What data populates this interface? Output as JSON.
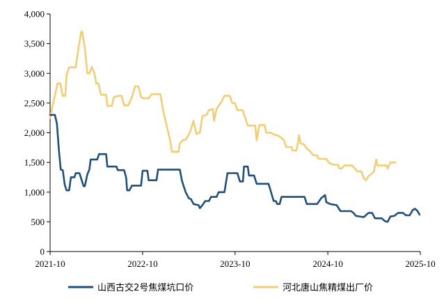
{
  "chart_data": {
    "type": "line",
    "title": "",
    "xlabel": "",
    "ylabel": "",
    "x_axis": {
      "type": "date",
      "range": [
        "2021-10",
        "2025-10"
      ],
      "tick_labels": [
        "2021-10",
        "2022-10",
        "2023-10",
        "2024-10",
        "2025-10"
      ]
    },
    "y_axis": {
      "range": [
        0,
        4000
      ],
      "tick_values": [
        0,
        500,
        1000,
        1500,
        2000,
        2500,
        3000,
        3500,
        4000
      ],
      "tick_labels": [
        "0",
        "500",
        "1,000",
        "1,500",
        "2,000",
        "2,500",
        "3,000",
        "3,500",
        "4,000"
      ]
    },
    "grid": false,
    "legend_position": "bottom",
    "series": [
      {
        "name": "山西古交2号焦煤坑口价",
        "color": "#1f4e79",
        "points": [
          [
            "2021-10-01",
            2300
          ],
          [
            "2021-10-20",
            2300
          ],
          [
            "2021-10-28",
            2150
          ],
          [
            "2021-11-05",
            1700
          ],
          [
            "2021-11-12",
            1380
          ],
          [
            "2021-11-20",
            1370
          ],
          [
            "2021-11-28",
            1120
          ],
          [
            "2021-12-05",
            1030
          ],
          [
            "2021-12-15",
            1030
          ],
          [
            "2021-12-22",
            1250
          ],
          [
            "2022-01-05",
            1250
          ],
          [
            "2022-01-10",
            1320
          ],
          [
            "2022-01-25",
            1320
          ],
          [
            "2022-02-10",
            1100
          ],
          [
            "2022-02-15",
            1100
          ],
          [
            "2022-02-25",
            1300
          ],
          [
            "2022-03-05",
            1380
          ],
          [
            "2022-03-10",
            1550
          ],
          [
            "2022-04-05",
            1550
          ],
          [
            "2022-04-12",
            1640
          ],
          [
            "2022-05-10",
            1640
          ],
          [
            "2022-05-15",
            1430
          ],
          [
            "2022-06-20",
            1430
          ],
          [
            "2022-06-25",
            1370
          ],
          [
            "2022-07-20",
            1370
          ],
          [
            "2022-07-28",
            1250
          ],
          [
            "2022-08-01",
            1030
          ],
          [
            "2022-08-10",
            1030
          ],
          [
            "2022-08-20",
            1110
          ],
          [
            "2022-09-25",
            1110
          ],
          [
            "2022-10-01",
            1360
          ],
          [
            "2022-10-20",
            1360
          ],
          [
            "2022-10-25",
            1200
          ],
          [
            "2022-11-25",
            1200
          ],
          [
            "2022-12-01",
            1380
          ],
          [
            "2023-02-25",
            1380
          ],
          [
            "2023-03-05",
            1200
          ],
          [
            "2023-03-12",
            1100
          ],
          [
            "2023-03-20",
            1000
          ],
          [
            "2023-04-01",
            900
          ],
          [
            "2023-04-10",
            880
          ],
          [
            "2023-04-20",
            800
          ],
          [
            "2023-05-10",
            780
          ],
          [
            "2023-05-15",
            730
          ],
          [
            "2023-05-25",
            780
          ],
          [
            "2023-06-05",
            850
          ],
          [
            "2023-06-20",
            850
          ],
          [
            "2023-06-28",
            920
          ],
          [
            "2023-07-20",
            920
          ],
          [
            "2023-07-28",
            1000
          ],
          [
            "2023-08-20",
            1000
          ],
          [
            "2023-09-01",
            1320
          ],
          [
            "2023-09-25",
            1320
          ],
          [
            "2023-10-10",
            1320
          ],
          [
            "2023-10-20",
            1180
          ],
          [
            "2023-11-01",
            1180
          ],
          [
            "2023-11-05",
            1430
          ],
          [
            "2023-11-20",
            1430
          ],
          [
            "2023-11-25",
            1280
          ],
          [
            "2023-12-15",
            1280
          ],
          [
            "2023-12-25",
            1140
          ],
          [
            "2024-02-10",
            1140
          ],
          [
            "2024-02-20",
            1000
          ],
          [
            "2024-03-01",
            850
          ],
          [
            "2024-03-10",
            850
          ],
          [
            "2024-03-15",
            800
          ],
          [
            "2024-03-25",
            800
          ],
          [
            "2024-04-01",
            920
          ],
          [
            "2024-07-01",
            920
          ],
          [
            "2024-07-10",
            800
          ],
          [
            "2024-08-20",
            800
          ],
          [
            "2024-09-05",
            900
          ],
          [
            "2024-09-20",
            950
          ],
          [
            "2024-09-25",
            830
          ],
          [
            "2024-10-10",
            800
          ],
          [
            "2024-11-05",
            780
          ],
          [
            "2024-11-20",
            680
          ],
          [
            "2025-01-01",
            680
          ],
          [
            "2025-01-10",
            650
          ],
          [
            "2025-01-20",
            600
          ],
          [
            "2025-02-20",
            580
          ],
          [
            "2025-03-10",
            650
          ],
          [
            "2025-03-25",
            650
          ],
          [
            "2025-04-05",
            560
          ],
          [
            "2025-05-01",
            560
          ],
          [
            "2025-05-15",
            510
          ],
          [
            "2025-05-25",
            500
          ],
          [
            "2025-06-05",
            590
          ],
          [
            "2025-06-20",
            600
          ],
          [
            "2025-07-05",
            650
          ],
          [
            "2025-07-25",
            650
          ],
          [
            "2025-08-05",
            610
          ],
          [
            "2025-08-20",
            610
          ],
          [
            "2025-09-01",
            700
          ],
          [
            "2025-09-10",
            720
          ],
          [
            "2025-09-20",
            680
          ],
          [
            "2025-09-28",
            620
          ]
        ]
      },
      {
        "name": "河北唐山焦精煤出厂价",
        "color": "#f2cd75",
        "points": [
          [
            "2021-10-01",
            2250
          ],
          [
            "2021-10-10",
            2450
          ],
          [
            "2021-10-20",
            2620
          ],
          [
            "2021-10-30",
            2830
          ],
          [
            "2021-11-10",
            2830
          ],
          [
            "2021-11-20",
            2620
          ],
          [
            "2021-11-30",
            2620
          ],
          [
            "2021-12-05",
            2980
          ],
          [
            "2021-12-15",
            3100
          ],
          [
            "2022-01-10",
            3100
          ],
          [
            "2022-01-20",
            3400
          ],
          [
            "2022-02-01",
            3700
          ],
          [
            "2022-02-05",
            3700
          ],
          [
            "2022-02-15",
            3420
          ],
          [
            "2022-02-25",
            3000
          ],
          [
            "2022-03-05",
            3000
          ],
          [
            "2022-03-15",
            3110
          ],
          [
            "2022-03-25",
            3000
          ],
          [
            "2022-04-01",
            2830
          ],
          [
            "2022-04-10",
            2830
          ],
          [
            "2022-04-20",
            2640
          ],
          [
            "2022-05-10",
            2640
          ],
          [
            "2022-05-15",
            2450
          ],
          [
            "2022-06-01",
            2450
          ],
          [
            "2022-06-10",
            2600
          ],
          [
            "2022-06-30",
            2620
          ],
          [
            "2022-07-10",
            2620
          ],
          [
            "2022-07-20",
            2460
          ],
          [
            "2022-08-05",
            2460
          ],
          [
            "2022-08-20",
            2600
          ],
          [
            "2022-09-01",
            2780
          ],
          [
            "2022-09-15",
            2780
          ],
          [
            "2022-09-25",
            2600
          ],
          [
            "2022-10-05",
            2580
          ],
          [
            "2022-10-25",
            2580
          ],
          [
            "2022-11-05",
            2650
          ],
          [
            "2022-12-10",
            2650
          ],
          [
            "2022-12-20",
            2400
          ],
          [
            "2023-01-05",
            2100
          ],
          [
            "2023-01-20",
            1820
          ],
          [
            "2023-01-25",
            1680
          ],
          [
            "2023-02-20",
            1680
          ],
          [
            "2023-02-25",
            1820
          ],
          [
            "2023-03-10",
            1880
          ],
          [
            "2023-03-20",
            1880
          ],
          [
            "2023-04-05",
            2000
          ],
          [
            "2023-04-15",
            2130
          ],
          [
            "2023-04-20",
            2200
          ],
          [
            "2023-05-01",
            1980
          ],
          [
            "2023-05-15",
            2000
          ],
          [
            "2023-05-25",
            2280
          ],
          [
            "2023-06-10",
            2300
          ],
          [
            "2023-06-20",
            2380
          ],
          [
            "2023-07-05",
            2400
          ],
          [
            "2023-07-10",
            2200
          ],
          [
            "2023-07-20",
            2400
          ],
          [
            "2023-08-05",
            2500
          ],
          [
            "2023-08-20",
            2620
          ],
          [
            "2023-09-10",
            2620
          ],
          [
            "2023-09-20",
            2500
          ],
          [
            "2023-09-30",
            2500
          ],
          [
            "2023-10-10",
            2380
          ],
          [
            "2023-10-30",
            2380
          ],
          [
            "2023-11-10",
            2250
          ],
          [
            "2023-11-20",
            2120
          ],
          [
            "2023-12-20",
            2120
          ],
          [
            "2023-12-25",
            1870
          ],
          [
            "2024-01-05",
            2130
          ],
          [
            "2024-01-25",
            2130
          ],
          [
            "2024-02-01",
            2000
          ],
          [
            "2024-02-20",
            2000
          ],
          [
            "2024-03-01",
            1970
          ],
          [
            "2024-03-20",
            1950
          ],
          [
            "2024-04-10",
            1880
          ],
          [
            "2024-04-20",
            1760
          ],
          [
            "2024-05-10",
            1760
          ],
          [
            "2024-05-15",
            1700
          ],
          [
            "2024-05-30",
            1700
          ],
          [
            "2024-06-10",
            1960
          ],
          [
            "2024-06-15",
            1820
          ],
          [
            "2024-06-30",
            1800
          ],
          [
            "2024-07-10",
            1730
          ],
          [
            "2024-07-20",
            1700
          ],
          [
            "2024-08-05",
            1620
          ],
          [
            "2024-08-20",
            1620
          ],
          [
            "2024-08-25",
            1560
          ],
          [
            "2024-09-25",
            1560
          ],
          [
            "2024-10-01",
            1520
          ],
          [
            "2024-10-10",
            1480
          ],
          [
            "2024-10-25",
            1460
          ],
          [
            "2024-11-10",
            1460
          ],
          [
            "2024-11-15",
            1400
          ],
          [
            "2024-11-25",
            1400
          ],
          [
            "2024-12-05",
            1450
          ],
          [
            "2024-12-25",
            1450
          ],
          [
            "2025-01-05",
            1450
          ],
          [
            "2025-01-15",
            1400
          ],
          [
            "2025-01-25",
            1350
          ],
          [
            "2025-02-10",
            1350
          ],
          [
            "2025-02-20",
            1230
          ],
          [
            "2025-03-01",
            1200
          ],
          [
            "2025-03-10",
            1270
          ],
          [
            "2025-03-20",
            1300
          ],
          [
            "2025-04-01",
            1350
          ],
          [
            "2025-04-10",
            1550
          ],
          [
            "2025-04-15",
            1450
          ],
          [
            "2025-05-20",
            1450
          ],
          [
            "2025-05-25",
            1400
          ],
          [
            "2025-06-05",
            1500
          ],
          [
            "2025-06-25",
            1500
          ]
        ]
      }
    ]
  }
}
